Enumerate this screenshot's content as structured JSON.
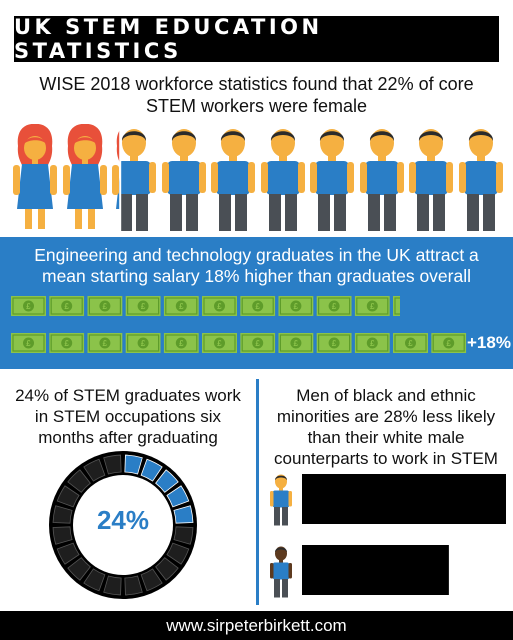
{
  "header": {
    "title": "UK STEM EDUCATION STATISTICS"
  },
  "gender_fact": {
    "text": "WISE 2018 workforce statistics found that 22% of core STEM workers were female",
    "female_share": 0.22,
    "figure_count": 10,
    "icons": [
      "female-worker-icon",
      "male-worker-icon"
    ]
  },
  "salary_fact": {
    "text": "Engineering and technology graduates in the UK attract a mean starting salary 18% higher than graduates overall",
    "baseline_note_count": 10.2,
    "engineering_note_count": 12,
    "difference_label": "+18%",
    "note_symbol": "£",
    "icon": "banknote-icon"
  },
  "occupation_fact": {
    "text": "24% of STEM graduates work in STEM occupations six months after graduating",
    "percent_label": "24%",
    "percent": 24,
    "segments": 20
  },
  "ethnicity_fact": {
    "text": "Men of black and ethnic minorities are 28% less likely than their white male counterparts to work in STEM",
    "white_male_level": 1.0,
    "bame_male_level": 0.72,
    "icons": [
      "white-male-icon",
      "black-male-icon"
    ]
  },
  "footer": {
    "url": "www.sirpeterbirkett.com"
  },
  "colors": {
    "accent_blue": "#2a7ec6",
    "female_hair": "#e8503a",
    "skin": "#f5b041",
    "dark_skin": "#5d3a1f",
    "trousers": "#4a4f55",
    "note_green": "#8bc34a",
    "black": "#000000"
  }
}
